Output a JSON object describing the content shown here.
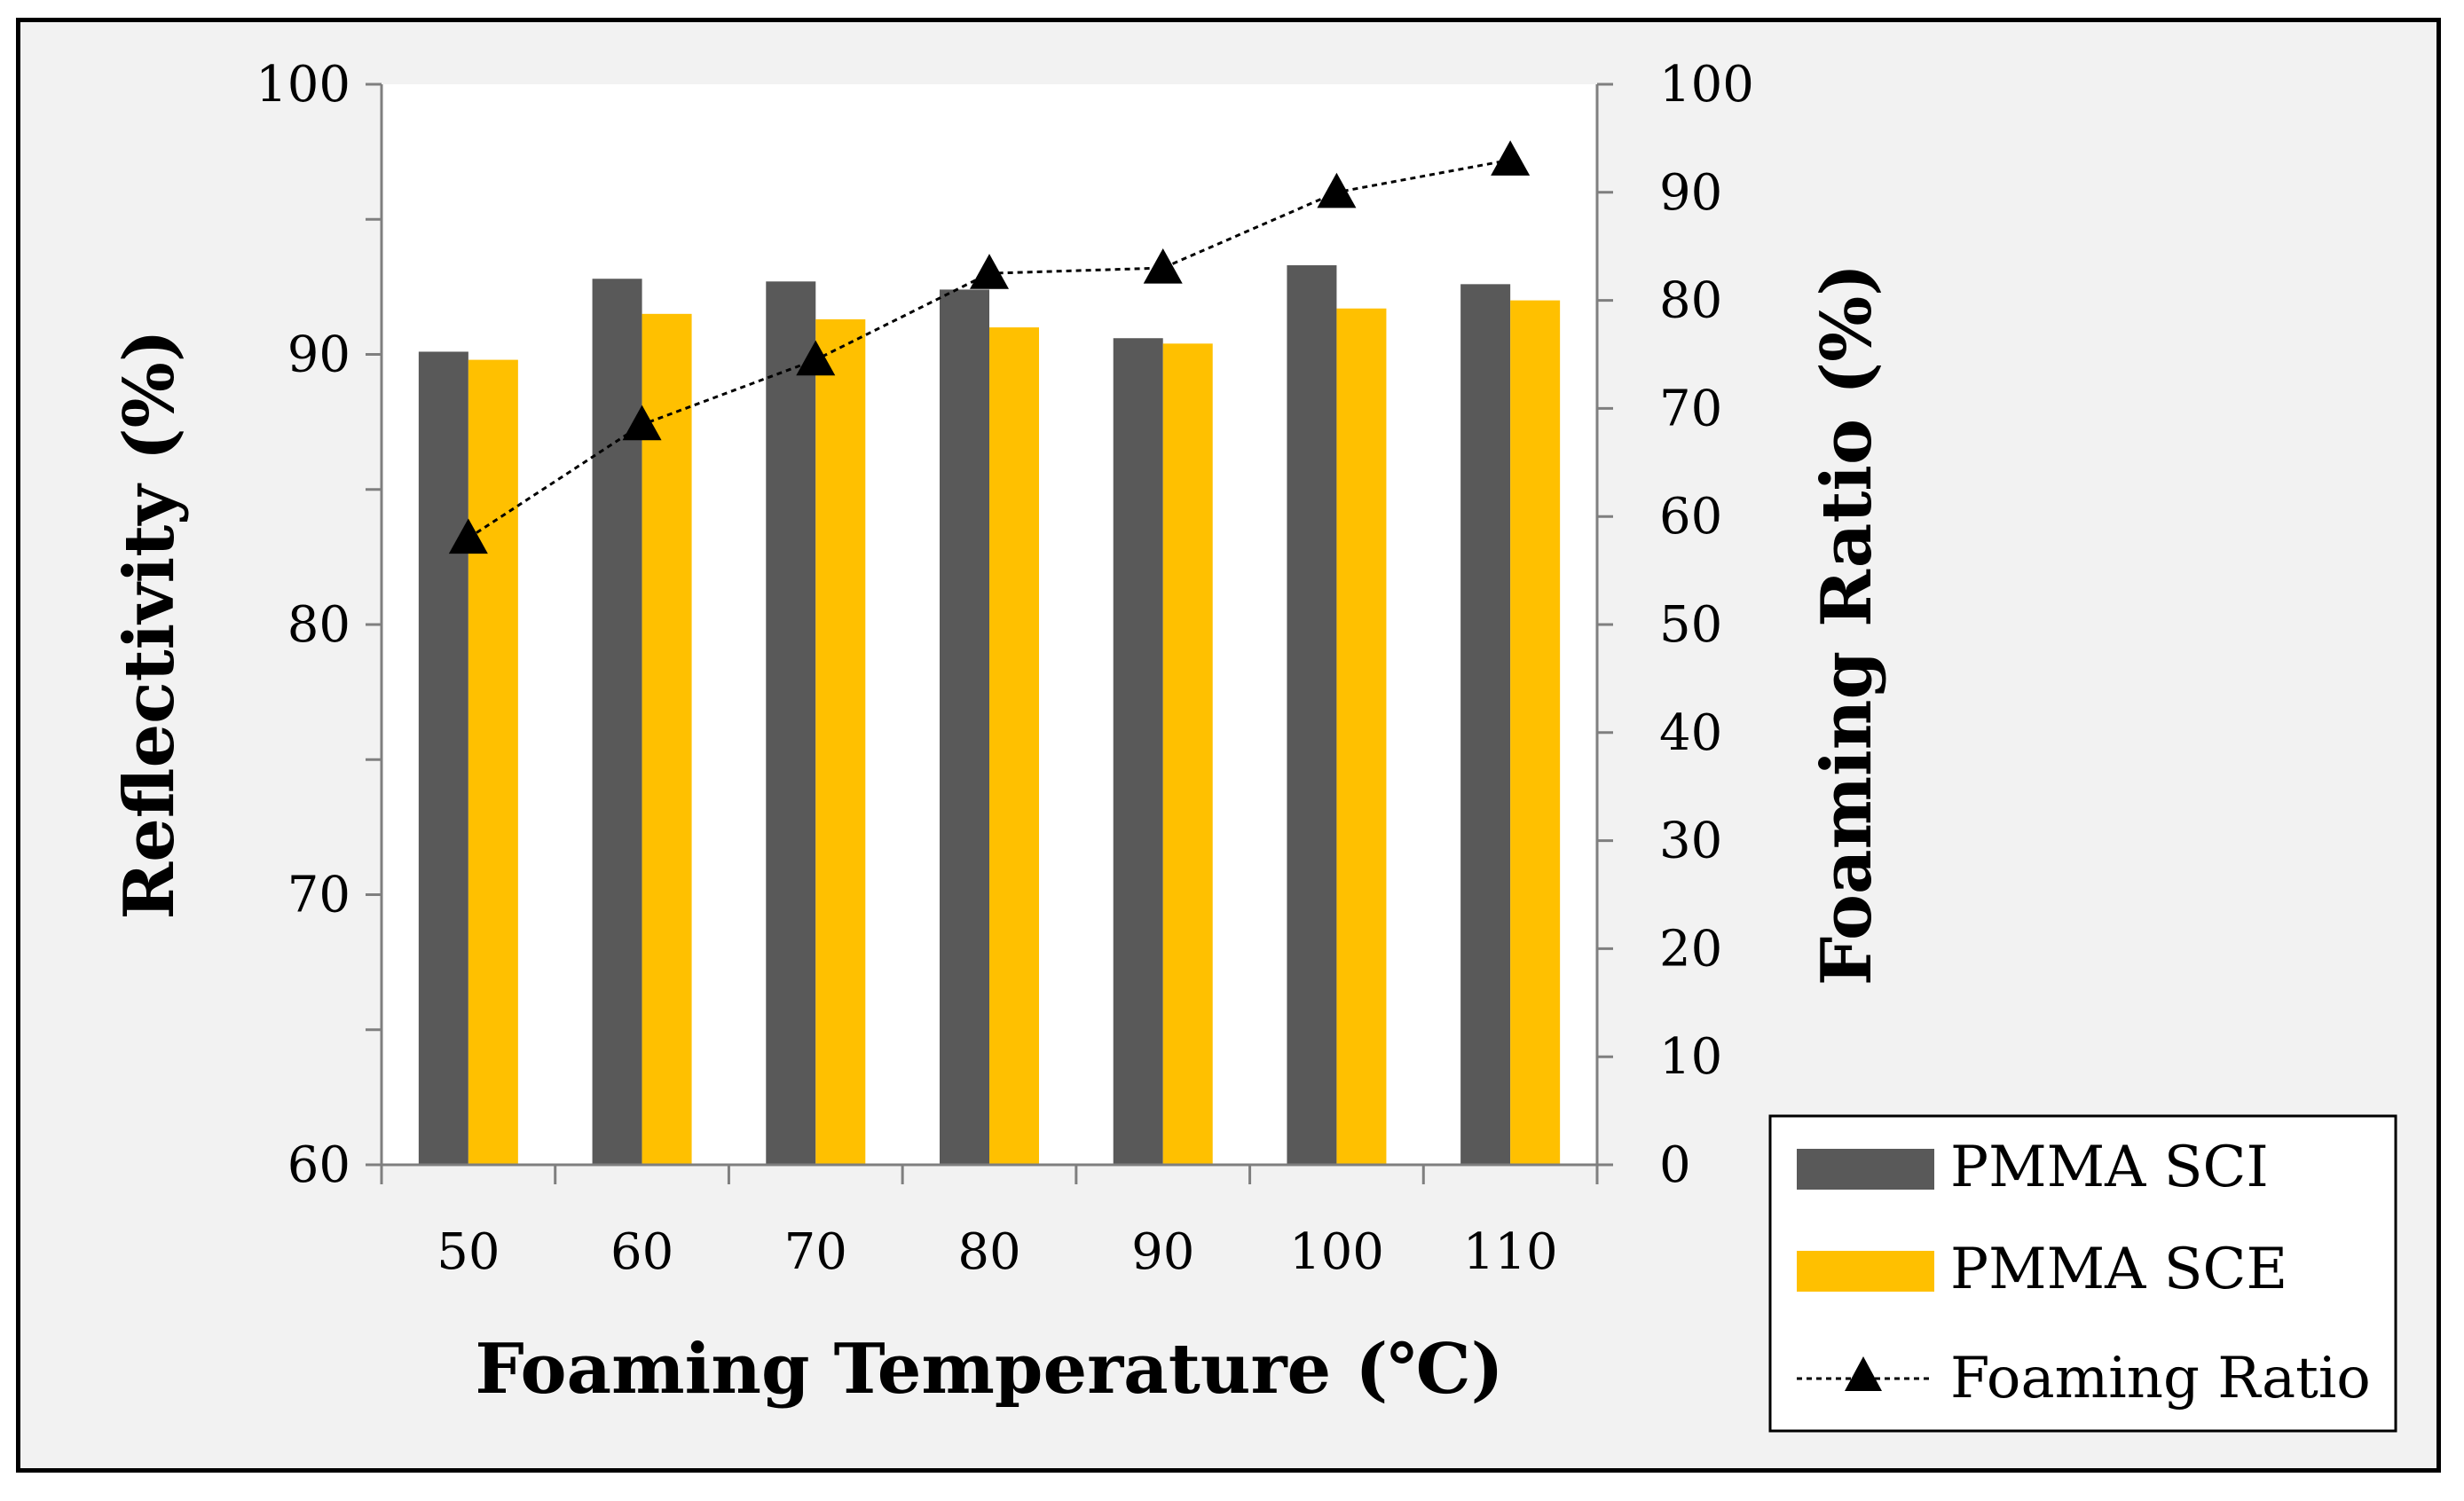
{
  "chart_data": {
    "type": "bar",
    "categories": [
      "50",
      "60",
      "70",
      "80",
      "90",
      "100",
      "110"
    ],
    "series": [
      {
        "name": "PMMA SCI",
        "axis": "left",
        "color": "#595959",
        "values": [
          90.1,
          92.8,
          92.7,
          92.4,
          90.6,
          93.3,
          92.6
        ]
      },
      {
        "name": "PMMA SCE",
        "axis": "left",
        "color": "#ffc000",
        "values": [
          89.8,
          91.5,
          91.3,
          91.0,
          90.4,
          91.7,
          92.0
        ]
      }
    ],
    "line_series": {
      "name": "Foaming Ratio",
      "axis": "right",
      "color": "#000000",
      "marker": "triangle",
      "line_style": "dotted",
      "values": [
        58.0,
        68.5,
        74.5,
        82.5,
        83.0,
        90.0,
        93.0
      ]
    },
    "xlabel": "Foaming Temperature (℃)",
    "ylabel": "Reflectivity (%)",
    "y2label": "Foaming Ratio (%)",
    "ylim": [
      60,
      100
    ],
    "y_ticks": [
      "60",
      "70",
      "80",
      "90",
      "100"
    ],
    "y2lim": [
      0,
      100
    ],
    "y2_ticks": [
      "0",
      "10",
      "20",
      "30",
      "40",
      "50",
      "60",
      "70",
      "80",
      "90",
      "100"
    ],
    "legend": {
      "position": "bottom-right",
      "entries": [
        "PMMA SCI",
        "PMMA SCE",
        "Foaming Ratio"
      ]
    },
    "grid": false
  }
}
